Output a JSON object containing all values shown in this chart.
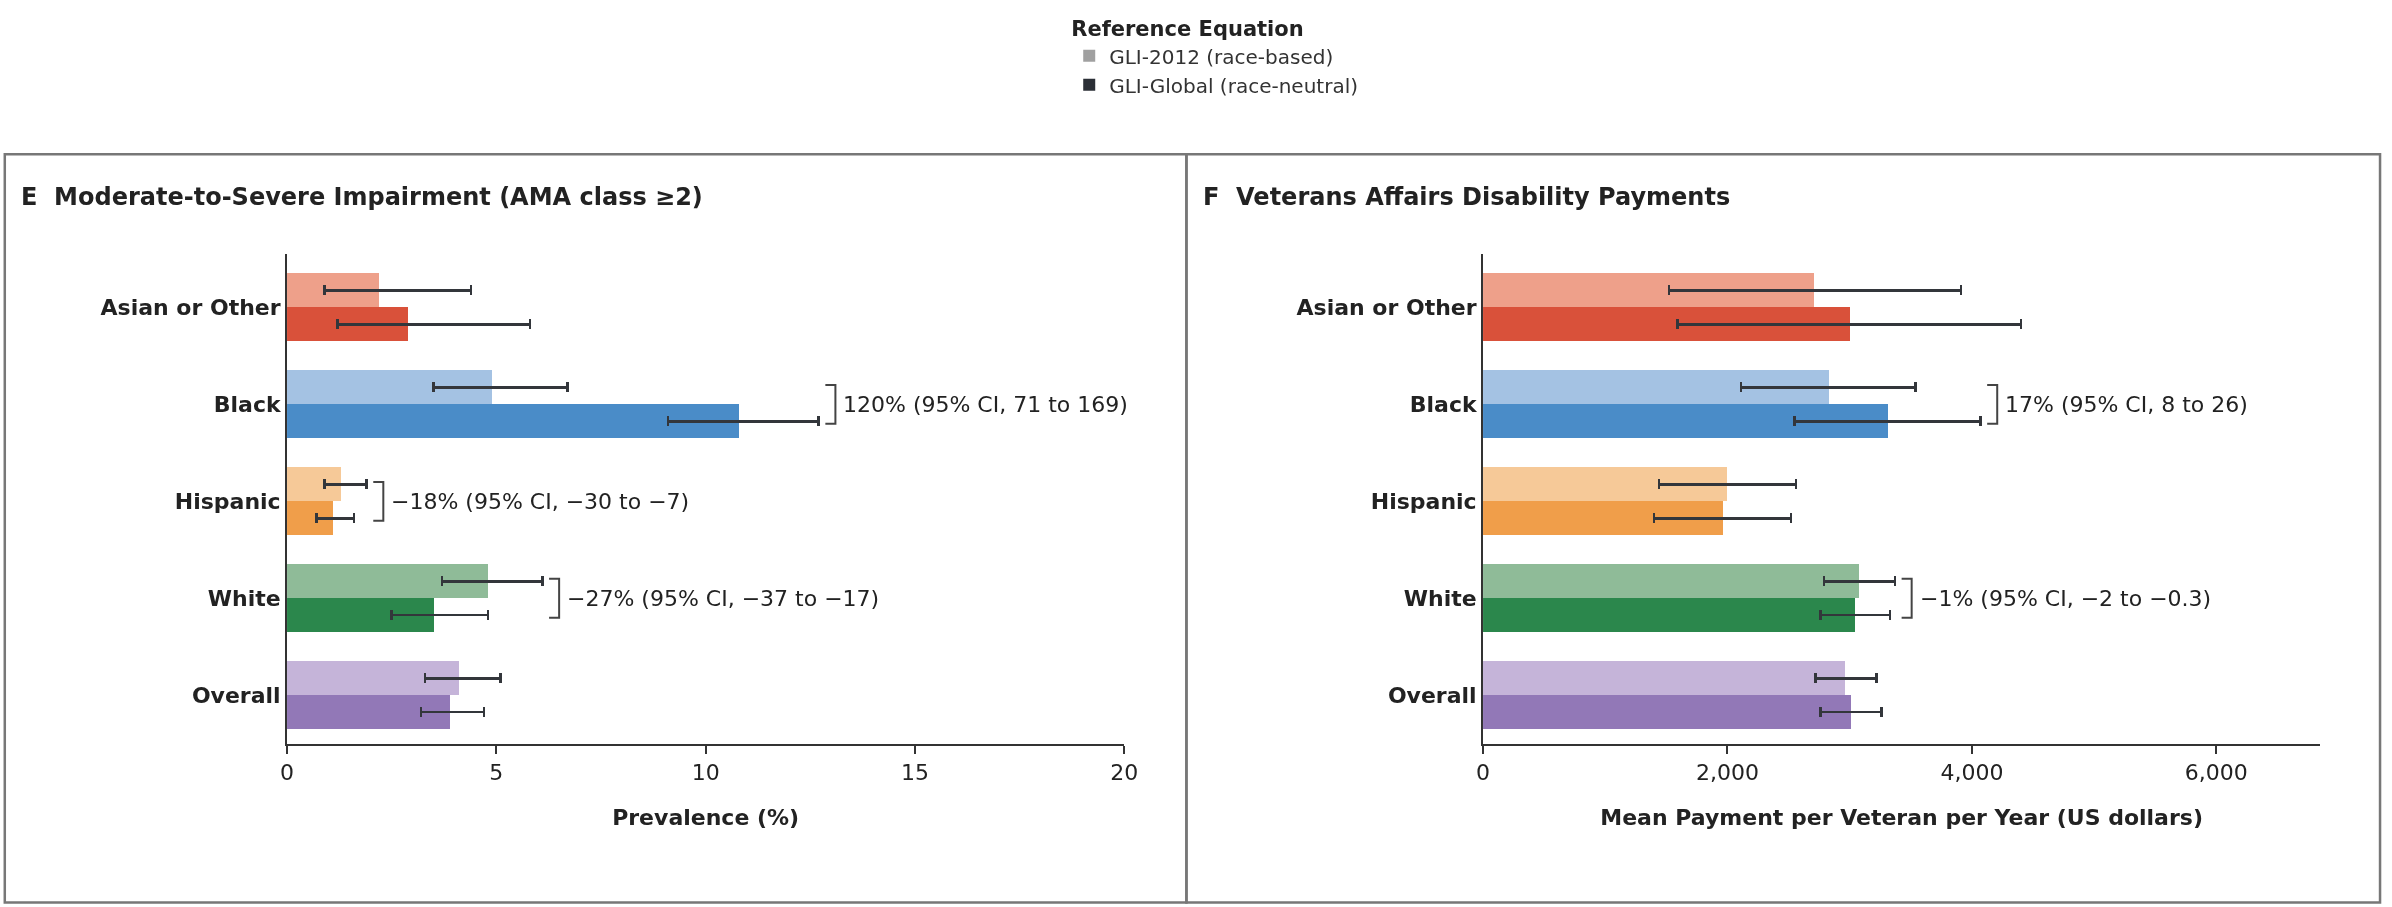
{
  "chart_data": [
    {
      "type": "bar",
      "orientation": "horizontal",
      "title": "E  Moderate-to-Severe Impairment (AMA class ≥2)",
      "xlabel": "Prevalence (%)",
      "legend_title": "Reference Equation",
      "legend": "top",
      "categories": [
        "Asian or Other",
        "Black",
        "Hispanic",
        "White",
        "Overall"
      ],
      "xlim": [
        0,
        20
      ],
      "xticks": [
        0,
        5,
        10,
        15,
        20
      ],
      "series": [
        {
          "name": "GLI-2012 (race-based)",
          "color": "#a0a0a0",
          "colors": [
            "#eea08a",
            "#a4c2e3",
            "#f6c998",
            "#8fbb98",
            "#c5b4d9"
          ],
          "values": [
            2.2,
            4.9,
            1.3,
            4.8,
            4.1
          ],
          "errors": [
            [
              0.9,
              4.4
            ],
            [
              3.5,
              6.7
            ],
            [
              0.9,
              1.9
            ],
            [
              3.7,
              6.1
            ],
            [
              3.3,
              5.1
            ]
          ]
        },
        {
          "name": "GLI-Global (race-neutral)",
          "color": "#2b2f36",
          "colors": [
            "#d9513a",
            "#4a8cc8",
            "#f09e4a",
            "#2b874c",
            "#9278b7"
          ],
          "values": [
            2.9,
            10.8,
            1.1,
            3.5,
            3.9
          ],
          "errors": [
            [
              1.2,
              5.8
            ],
            [
              9.1,
              12.7
            ],
            [
              0.7,
              1.6
            ],
            [
              2.5,
              4.8
            ],
            [
              3.2,
              4.7
            ]
          ]
        }
      ],
      "annotations": [
        "120% (95% CI, 71 to 169)",
        "−18% (95% CI, −30 to −7)",
        "−27% (95% CI, −37 to −17)"
      ]
    },
    {
      "type": "bar",
      "orientation": "horizontal",
      "title": "F  Veterans Affairs Disability Payments",
      "xlabel": "Mean Payment per Veteran per Year (US dollars)",
      "categories": [
        "Asian or Other",
        "Black",
        "Hispanic",
        "White",
        "Overall"
      ],
      "xlim": [
        0,
        6850
      ],
      "xticks": [
        0,
        {
          "value": 2000,
          "label": "2,000"
        },
        {
          "value": 4000,
          "label": "4,000"
        },
        {
          "value": 6000,
          "label": "6,000"
        }
      ],
      "series": [
        {
          "colors": [
            "#eea08a",
            "#a4c2e3",
            "#f6c998",
            "#8fbb98",
            "#c5b4d9"
          ],
          "values": [
            2710,
            2830,
            2000,
            3080,
            2960
          ],
          "errors": [
            [
              1520,
              3910
            ],
            [
              2110,
              3540
            ],
            [
              1440,
              2560
            ],
            [
              2790,
              3370
            ],
            [
              2720,
              3220
            ]
          ]
        },
        {
          "colors": [
            "#d9513a",
            "#4a8cc8",
            "#f09e4a",
            "#2b874c",
            "#9278b7"
          ],
          "values": [
            3000,
            3310,
            1960,
            3040,
            3010
          ],
          "errors": [
            [
              1590,
              4400
            ],
            [
              2550,
              4070
            ],
            [
              1400,
              2520
            ],
            [
              2760,
              3330
            ],
            [
              2760,
              3260
            ]
          ]
        }
      ],
      "annotations": [
        "17% (95% CI, 8 to 26)",
        "−1% (95% CI, −2 to −0.3)"
      ]
    }
  ]
}
